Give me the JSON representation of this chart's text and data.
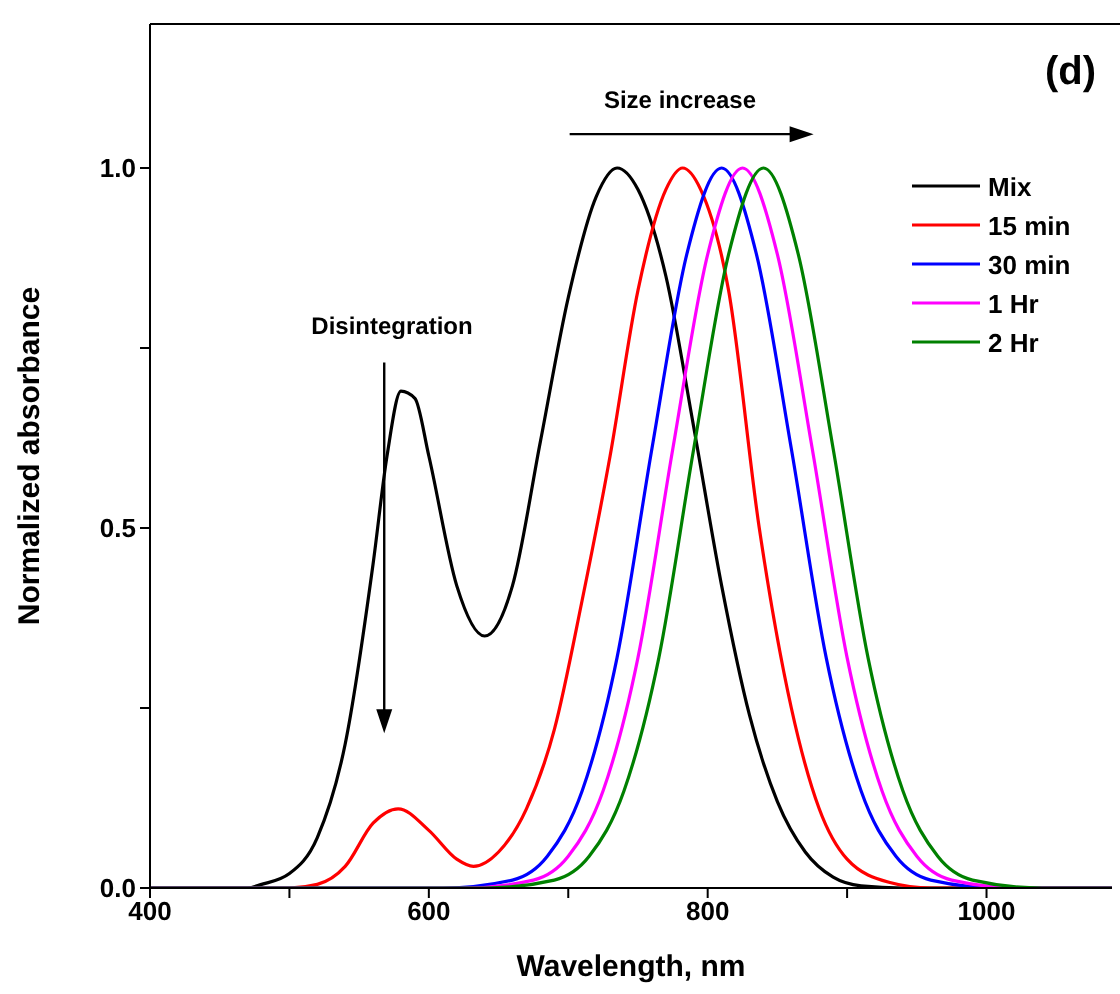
{
  "chart_data": {
    "type": "line",
    "xlabel": "Wavelength, nm",
    "ylabel": "Normalized absorbance",
    "xlim": [
      400,
      1090
    ],
    "ylim": [
      0,
      1.2
    ],
    "xticks": [
      400,
      {
        "value": 500,
        "label": null
      },
      600,
      {
        "value": 700,
        "label": null
      },
      800,
      {
        "value": 900,
        "label": null
      },
      1000
    ],
    "yticks": [
      {
        "value": 0,
        "label": "0.0"
      },
      {
        "value": 0.25,
        "label": null
      },
      {
        "value": 0.5,
        "label": "0.5"
      },
      {
        "value": 0.75,
        "label": null
      },
      {
        "value": 1,
        "label": "1.0"
      }
    ],
    "legend": "top right",
    "marker": "none",
    "line_style": "solid",
    "annotations": [
      "(d)",
      "Size increase",
      "Disintegration"
    ],
    "series": [
      {
        "name": "Mix",
        "color": "#000000",
        "x": [
          400,
          470,
          480,
          500,
          520,
          540,
          560,
          570,
          580,
          590,
          600,
          620,
          640,
          660,
          680,
          700,
          720,
          735,
          750,
          770,
          790,
          810,
          830,
          850,
          870,
          890,
          910,
          940,
          1090
        ],
        "values": [
          0,
          0,
          0.005,
          0.02,
          0.07,
          0.2,
          0.45,
          0.6,
          0.69,
          0.68,
          0.6,
          0.42,
          0.35,
          0.42,
          0.62,
          0.82,
          0.96,
          1.0,
          0.97,
          0.85,
          0.64,
          0.42,
          0.24,
          0.12,
          0.05,
          0.015,
          0.003,
          0,
          0
        ]
      },
      {
        "name": "15 min",
        "color": "#ff0000",
        "x": [
          400,
          500,
          520,
          540,
          560,
          578,
          600,
          620,
          632,
          650,
          670,
          690,
          710,
          730,
          750,
          770,
          782,
          795,
          815,
          837,
          860,
          880,
          900,
          930,
          960,
          1090
        ],
        "values": [
          0,
          0,
          0.005,
          0.03,
          0.09,
          0.11,
          0.08,
          0.04,
          0.03,
          0.05,
          0.11,
          0.22,
          0.4,
          0.6,
          0.83,
          0.97,
          1.0,
          0.97,
          0.83,
          0.5,
          0.25,
          0.11,
          0.04,
          0.008,
          0,
          0
        ]
      },
      {
        "name": "30 min",
        "color": "#0000ff",
        "x": [
          400,
          610,
          660,
          685,
          710,
          735,
          760,
          785,
          810,
          835,
          860,
          885,
          910,
          935,
          960,
          1010,
          1090
        ],
        "values": [
          0,
          0,
          0.011,
          0.044,
          0.135,
          0.32,
          0.61,
          0.88,
          1.0,
          0.88,
          0.61,
          0.32,
          0.135,
          0.044,
          0.011,
          0,
          0
        ]
      },
      {
        "name": "1 Hr",
        "color": "#ff00ff",
        "x": [
          400,
          625,
          675,
          700,
          725,
          750,
          775,
          800,
          825,
          850,
          875,
          900,
          925,
          950,
          975,
          1025,
          1090
        ],
        "values": [
          0,
          0,
          0.011,
          0.044,
          0.135,
          0.32,
          0.61,
          0.88,
          1.0,
          0.88,
          0.61,
          0.32,
          0.135,
          0.044,
          0.011,
          0,
          0
        ]
      },
      {
        "name": "2 Hr",
        "color": "#008000",
        "x": [
          400,
          640,
          690,
          715,
          740,
          765,
          790,
          815,
          840,
          865,
          890,
          915,
          940,
          965,
          990,
          1040,
          1090
        ],
        "values": [
          0,
          0,
          0.011,
          0.044,
          0.135,
          0.32,
          0.61,
          0.88,
          1.0,
          0.88,
          0.61,
          0.32,
          0.135,
          0.044,
          0.011,
          0,
          0
        ]
      }
    ]
  }
}
